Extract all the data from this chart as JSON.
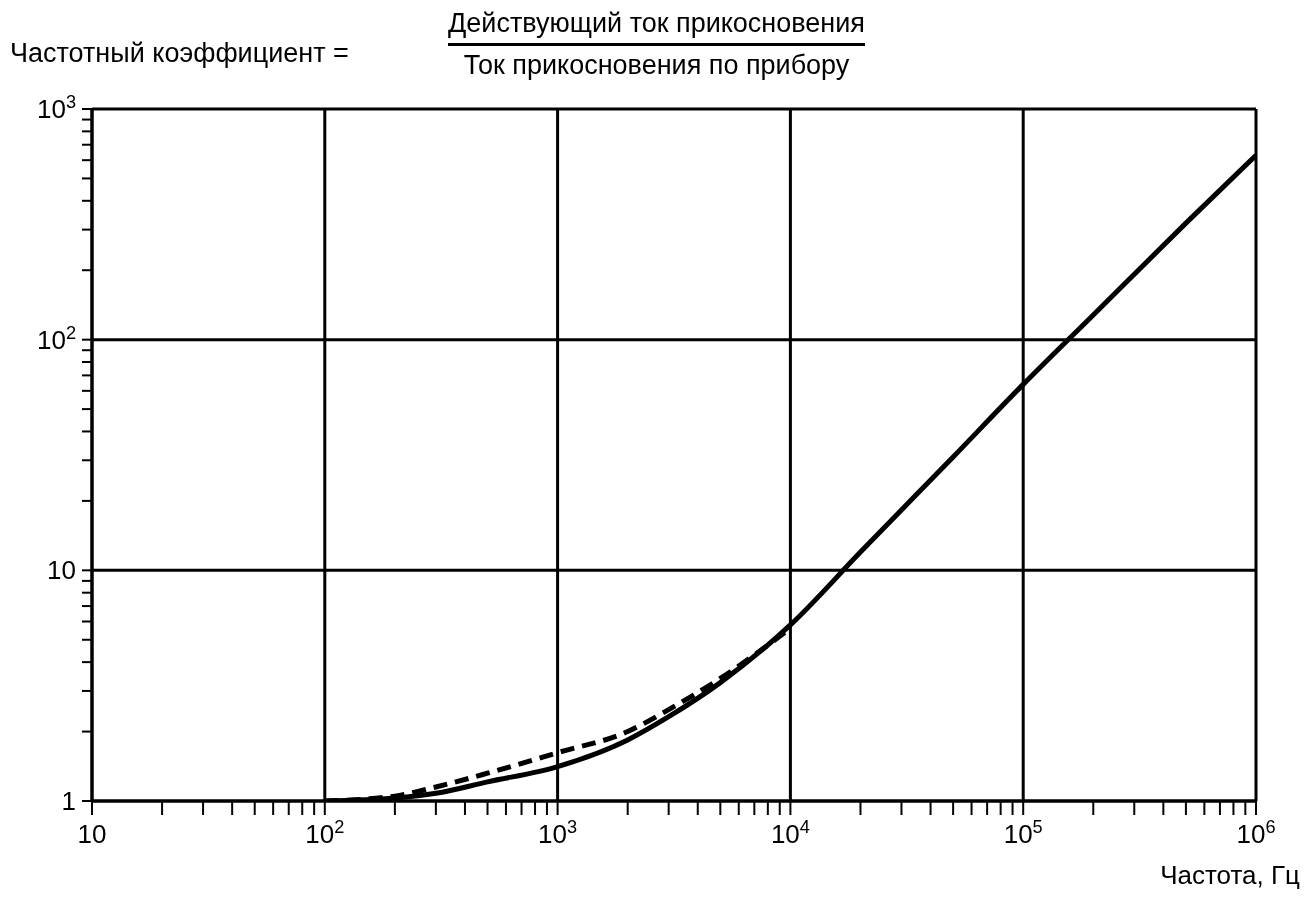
{
  "chart_data": {
    "type": "line",
    "title": "Частотный коэффициент =",
    "annotations": [
      "Действующий ток прикосновения",
      "Ток прикосновения по прибору"
    ],
    "xlabel": "Частота, Гц",
    "log": "xy",
    "grid": true,
    "marker": "none",
    "xlim": [
      10,
      1000000
    ],
    "ylim": [
      1,
      1000
    ],
    "xticks": [
      10,
      {
        "value": 20,
        "label": null
      },
      {
        "value": 30,
        "label": null
      },
      {
        "value": 40,
        "label": null
      },
      {
        "value": 50,
        "label": null
      },
      {
        "value": 60,
        "label": null
      },
      {
        "value": 70,
        "label": null
      },
      {
        "value": 80,
        "label": null
      },
      {
        "value": 90,
        "label": null
      },
      {
        "value": 100,
        "label": "10$^{2}$"
      },
      {
        "value": 200,
        "label": null
      },
      {
        "value": 300,
        "label": null
      },
      {
        "value": 400,
        "label": null
      },
      {
        "value": 500,
        "label": null
      },
      {
        "value": 600,
        "label": null
      },
      {
        "value": 700,
        "label": null
      },
      {
        "value": 800,
        "label": null
      },
      {
        "value": 900,
        "label": null
      },
      {
        "value": 1000,
        "label": "10$^{3}$"
      },
      {
        "value": 2000,
        "label": null
      },
      {
        "value": 3000,
        "label": null
      },
      {
        "value": 4000,
        "label": null
      },
      {
        "value": 5000,
        "label": null
      },
      {
        "value": 6000,
        "label": null
      },
      {
        "value": 7000,
        "label": null
      },
      {
        "value": 8000,
        "label": null
      },
      {
        "value": 9000,
        "label": null
      },
      {
        "value": 10000,
        "label": "10$^{4}$"
      },
      {
        "value": 20000,
        "label": null
      },
      {
        "value": 30000,
        "label": null
      },
      {
        "value": 40000,
        "label": null
      },
      {
        "value": 50000,
        "label": null
      },
      {
        "value": 60000,
        "label": null
      },
      {
        "value": 70000,
        "label": null
      },
      {
        "value": 80000,
        "label": null
      },
      {
        "value": 90000,
        "label": null
      },
      {
        "value": 100000,
        "label": "10$^{5}$"
      },
      {
        "value": 200000,
        "label": null
      },
      {
        "value": 300000,
        "label": null
      },
      {
        "value": 400000,
        "label": null
      },
      {
        "value": 500000,
        "label": null
      },
      {
        "value": 600000,
        "label": null
      },
      {
        "value": 700000,
        "label": null
      },
      {
        "value": 800000,
        "label": null
      },
      {
        "value": 900000,
        "label": null
      },
      {
        "value": 1000000,
        "label": "10$^{6}$"
      }
    ],
    "yticks": [
      1,
      {
        "value": 2,
        "label": null
      },
      {
        "value": 3,
        "label": null
      },
      {
        "value": 4,
        "label": null
      },
      {
        "value": 5,
        "label": null
      },
      {
        "value": 6,
        "label": null
      },
      {
        "value": 7,
        "label": null
      },
      {
        "value": 8,
        "label": null
      },
      {
        "value": 9,
        "label": null
      },
      10,
      {
        "value": 20,
        "label": null
      },
      {
        "value": 30,
        "label": null
      },
      {
        "value": 40,
        "label": null
      },
      {
        "value": 50,
        "label": null
      },
      {
        "value": 60,
        "label": null
      },
      {
        "value": 70,
        "label": null
      },
      {
        "value": 80,
        "label": null
      },
      {
        "value": 90,
        "label": null
      },
      {
        "value": 100,
        "label": "10$^{2}$"
      },
      {
        "value": 200,
        "label": null
      },
      {
        "value": 300,
        "label": null
      },
      {
        "value": 400,
        "label": null
      },
      {
        "value": 500,
        "label": null
      },
      {
        "value": 600,
        "label": null
      },
      {
        "value": 700,
        "label": null
      },
      {
        "value": 800,
        "label": null
      },
      {
        "value": 900,
        "label": null
      },
      {
        "value": 1000,
        "label": "10$^{3}$"
      }
    ],
    "series": [
      {
        "color": "#000000",
        "line_style": "solid",
        "x": [
          100,
          200,
          300,
          500,
          1000,
          2000,
          3000,
          5000,
          10000,
          20000,
          50000,
          100000,
          200000,
          500000,
          1000000
        ],
        "values": [
          1,
          1.03,
          1.08,
          1.21,
          1.41,
          1.84,
          2.32,
          3.26,
          5.8,
          12,
          31,
          64,
          128,
          320,
          630
        ]
      },
      {
        "color": "#000000",
        "line_style": "dashed",
        "x": [
          100,
          200,
          300,
          500,
          1000,
          2000,
          3000,
          5000,
          10000
        ],
        "values": [
          1,
          1.05,
          1.15,
          1.32,
          1.62,
          2.0,
          2.49,
          3.4,
          5.6
        ]
      }
    ]
  }
}
